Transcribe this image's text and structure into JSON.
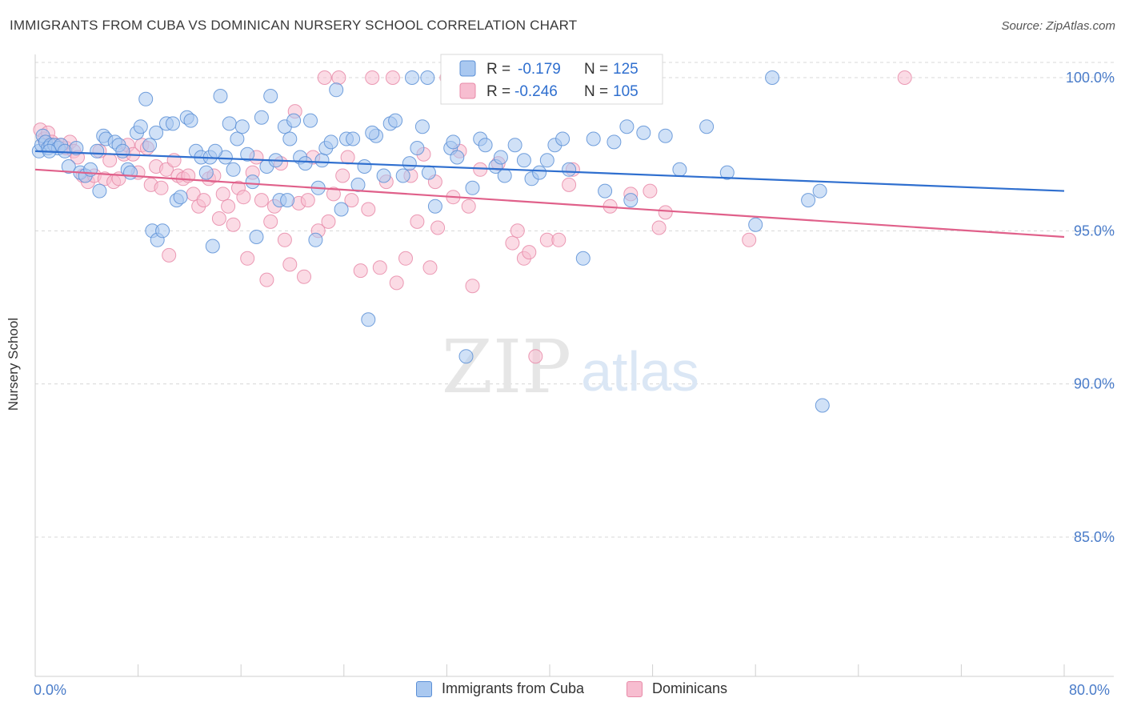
{
  "title": "IMMIGRANTS FROM CUBA VS DOMINICAN NURSERY SCHOOL CORRELATION CHART",
  "source": "Source: ZipAtlas.com",
  "watermark": {
    "zip": "ZIP",
    "atlas": "atlas"
  },
  "colors": {
    "blue_fill": "#a9c8f0",
    "blue_stroke": "#5b8fd6",
    "blue_line": "#2f6fcf",
    "pink_fill": "#f7bdd0",
    "pink_stroke": "#e88aa8",
    "pink_line": "#e0608a",
    "axis_text": "#4a7cc9",
    "grid": "#d8d8d8"
  },
  "legend": {
    "r_label": "R =",
    "n_label": "N =",
    "rows": [
      {
        "r": "-0.179",
        "n": "125"
      },
      {
        "r": "-0.246",
        "n": "105"
      }
    ]
  },
  "chart_data": {
    "type": "scatter",
    "ylabel": "Nursery School",
    "xlim": [
      0,
      80
    ],
    "ylim": [
      80.5,
      100.5
    ],
    "x_tick_labels": [
      "0.0%",
      "80.0%"
    ],
    "y_ticks": [
      {
        "value": 100,
        "label": "100.0%"
      },
      {
        "value": 95,
        "label": "95.0%"
      },
      {
        "value": 90,
        "label": "90.0%"
      },
      {
        "value": 85,
        "label": "85.0%"
      }
    ],
    "grid": true,
    "legend_position": "top-center",
    "series": [
      {
        "name": "Immigrants from Cuba",
        "color": "blue",
        "r": -0.179,
        "n": 125,
        "trend": {
          "x0": 0,
          "y0": 97.6,
          "x1": 80,
          "y1": 96.3
        },
        "points": [
          [
            0.3,
            97.6
          ],
          [
            0.5,
            97.8
          ],
          [
            0.6,
            98.1
          ],
          [
            0.8,
            97.9
          ],
          [
            1.0,
            97.7
          ],
          [
            1.2,
            97.8
          ],
          [
            1.5,
            97.8
          ],
          [
            1.8,
            97.7
          ],
          [
            2.0,
            97.8
          ],
          [
            2.3,
            97.6
          ],
          [
            2.6,
            97.1
          ],
          [
            3.2,
            97.7
          ],
          [
            3.5,
            96.9
          ],
          [
            3.9,
            96.8
          ],
          [
            4.3,
            97.0
          ],
          [
            4.8,
            97.6
          ],
          [
            5.3,
            98.1
          ],
          [
            5.5,
            98.0
          ],
          [
            6.2,
            97.9
          ],
          [
            6.5,
            97.8
          ],
          [
            6.8,
            97.6
          ],
          [
            7.2,
            97.0
          ],
          [
            7.4,
            96.9
          ],
          [
            7.9,
            98.2
          ],
          [
            8.2,
            98.4
          ],
          [
            8.6,
            99.3
          ],
          [
            8.9,
            97.8
          ],
          [
            9.1,
            95.0
          ],
          [
            9.5,
            94.7
          ],
          [
            9.9,
            95.0
          ],
          [
            10.2,
            98.5
          ],
          [
            10.7,
            98.5
          ],
          [
            11.0,
            96.0
          ],
          [
            11.3,
            96.1
          ],
          [
            11.8,
            98.7
          ],
          [
            12.1,
            98.6
          ],
          [
            12.5,
            97.6
          ],
          [
            12.9,
            97.4
          ],
          [
            13.3,
            96.9
          ],
          [
            13.6,
            97.4
          ],
          [
            13.8,
            94.5
          ],
          [
            14.4,
            99.4
          ],
          [
            14.8,
            97.4
          ],
          [
            15.1,
            98.5
          ],
          [
            15.4,
            97.0
          ],
          [
            15.7,
            98.0
          ],
          [
            16.1,
            98.4
          ],
          [
            16.5,
            97.5
          ],
          [
            16.9,
            96.6
          ],
          [
            17.2,
            94.8
          ],
          [
            17.6,
            98.7
          ],
          [
            18.0,
            97.1
          ],
          [
            18.3,
            99.4
          ],
          [
            18.7,
            97.3
          ],
          [
            19.0,
            96.0
          ],
          [
            19.4,
            98.4
          ],
          [
            19.8,
            98.0
          ],
          [
            20.1,
            98.6
          ],
          [
            20.6,
            97.4
          ],
          [
            21.0,
            97.2
          ],
          [
            21.4,
            98.6
          ],
          [
            21.8,
            94.7
          ],
          [
            22.3,
            97.3
          ],
          [
            22.6,
            97.7
          ],
          [
            23.0,
            97.9
          ],
          [
            23.4,
            99.6
          ],
          [
            23.8,
            95.7
          ],
          [
            24.2,
            98.0
          ],
          [
            24.7,
            98.0
          ],
          [
            25.1,
            96.5
          ],
          [
            25.6,
            97.1
          ],
          [
            25.9,
            92.1
          ],
          [
            26.5,
            98.1
          ],
          [
            27.1,
            96.8
          ],
          [
            27.6,
            98.5
          ],
          [
            28.0,
            98.6
          ],
          [
            28.6,
            96.8
          ],
          [
            29.1,
            97.2
          ],
          [
            29.3,
            100.0
          ],
          [
            29.7,
            97.7
          ],
          [
            30.1,
            98.4
          ],
          [
            30.6,
            96.9
          ],
          [
            31.1,
            95.8
          ],
          [
            32.3,
            97.7
          ],
          [
            32.8,
            97.4
          ],
          [
            33.5,
            90.9
          ],
          [
            34.0,
            96.4
          ],
          [
            34.6,
            98.0
          ],
          [
            35.0,
            97.8
          ],
          [
            35.8,
            97.1
          ],
          [
            36.2,
            97.4
          ],
          [
            36.5,
            96.8
          ],
          [
            37.3,
            97.8
          ],
          [
            38.0,
            97.3
          ],
          [
            38.6,
            96.7
          ],
          [
            39.2,
            96.9
          ],
          [
            39.8,
            97.3
          ],
          [
            40.4,
            97.8
          ],
          [
            41.0,
            98.0
          ],
          [
            41.5,
            97.0
          ],
          [
            42.6,
            94.1
          ],
          [
            43.4,
            98.0
          ],
          [
            44.3,
            96.3
          ],
          [
            45.0,
            97.9
          ],
          [
            46.3,
            96.0
          ],
          [
            47.3,
            98.2
          ],
          [
            49.0,
            98.1
          ],
          [
            50.1,
            97.0
          ],
          [
            52.2,
            98.4
          ],
          [
            53.8,
            96.9
          ],
          [
            56.0,
            95.2
          ],
          [
            60.1,
            96.0
          ],
          [
            61.0,
            96.3
          ],
          [
            61.2,
            89.3
          ],
          [
            57.3,
            100.0
          ],
          [
            19.6,
            96.0
          ],
          [
            30.5,
            100.0
          ],
          [
            14.0,
            97.6
          ],
          [
            22.0,
            96.4
          ],
          [
            5.0,
            96.3
          ],
          [
            9.4,
            98.2
          ],
          [
            26.2,
            98.2
          ],
          [
            46.0,
            98.4
          ],
          [
            1.1,
            97.6
          ],
          [
            32.5,
            97.9
          ]
        ]
      },
      {
        "name": "Dominicans",
        "color": "pink",
        "r": -0.246,
        "n": 105,
        "trend": {
          "x0": 0,
          "y0": 97.0,
          "x1": 80,
          "y1": 94.8
        },
        "points": [
          [
            0.4,
            98.3
          ],
          [
            0.7,
            98.0
          ],
          [
            1.0,
            98.2
          ],
          [
            1.3,
            97.9
          ],
          [
            1.6,
            97.8
          ],
          [
            2.0,
            97.8
          ],
          [
            2.4,
            97.7
          ],
          [
            2.7,
            97.9
          ],
          [
            3.0,
            97.6
          ],
          [
            3.3,
            97.4
          ],
          [
            3.7,
            96.8
          ],
          [
            4.1,
            96.6
          ],
          [
            4.6,
            96.8
          ],
          [
            5.0,
            97.6
          ],
          [
            5.4,
            96.7
          ],
          [
            5.8,
            97.3
          ],
          [
            6.1,
            96.6
          ],
          [
            6.5,
            96.7
          ],
          [
            6.9,
            97.5
          ],
          [
            7.2,
            97.8
          ],
          [
            7.6,
            97.5
          ],
          [
            8.0,
            96.9
          ],
          [
            8.3,
            97.8
          ],
          [
            8.7,
            97.7
          ],
          [
            9.0,
            96.5
          ],
          [
            9.4,
            97.1
          ],
          [
            9.8,
            96.4
          ],
          [
            10.2,
            97.0
          ],
          [
            10.4,
            94.2
          ],
          [
            10.8,
            97.3
          ],
          [
            11.1,
            96.8
          ],
          [
            11.5,
            96.7
          ],
          [
            11.9,
            96.8
          ],
          [
            12.3,
            96.2
          ],
          [
            12.7,
            95.8
          ],
          [
            13.1,
            96.0
          ],
          [
            13.5,
            96.7
          ],
          [
            13.9,
            96.8
          ],
          [
            14.3,
            95.4
          ],
          [
            14.6,
            96.2
          ],
          [
            15.0,
            95.8
          ],
          [
            15.4,
            95.2
          ],
          [
            15.8,
            96.4
          ],
          [
            16.2,
            96.1
          ],
          [
            16.5,
            94.1
          ],
          [
            16.9,
            96.9
          ],
          [
            17.2,
            97.4
          ],
          [
            17.6,
            96.0
          ],
          [
            18.0,
            93.4
          ],
          [
            18.3,
            95.3
          ],
          [
            18.6,
            95.8
          ],
          [
            19.1,
            97.2
          ],
          [
            19.4,
            94.7
          ],
          [
            19.8,
            93.9
          ],
          [
            20.2,
            98.9
          ],
          [
            20.5,
            95.9
          ],
          [
            20.9,
            93.5
          ],
          [
            21.2,
            96.0
          ],
          [
            21.6,
            97.4
          ],
          [
            22.0,
            95.0
          ],
          [
            22.5,
            100.0
          ],
          [
            22.8,
            95.3
          ],
          [
            23.2,
            96.2
          ],
          [
            23.6,
            100.0
          ],
          [
            23.9,
            96.8
          ],
          [
            24.3,
            97.4
          ],
          [
            24.6,
            96.0
          ],
          [
            25.3,
            93.7
          ],
          [
            25.9,
            95.7
          ],
          [
            26.2,
            100.0
          ],
          [
            26.8,
            93.8
          ],
          [
            27.3,
            96.6
          ],
          [
            27.8,
            100.0
          ],
          [
            28.1,
            93.3
          ],
          [
            28.8,
            94.1
          ],
          [
            29.2,
            96.8
          ],
          [
            29.7,
            95.3
          ],
          [
            30.2,
            97.5
          ],
          [
            30.7,
            93.8
          ],
          [
            31.1,
            96.6
          ],
          [
            31.3,
            95.1
          ],
          [
            32.0,
            100.0
          ],
          [
            32.5,
            96.1
          ],
          [
            33.0,
            97.6
          ],
          [
            33.7,
            95.8
          ],
          [
            34.0,
            93.2
          ],
          [
            34.6,
            97.0
          ],
          [
            36.0,
            97.2
          ],
          [
            37.1,
            94.6
          ],
          [
            37.5,
            95.0
          ],
          [
            38.0,
            94.1
          ],
          [
            38.4,
            94.3
          ],
          [
            38.9,
            90.9
          ],
          [
            39.8,
            94.7
          ],
          [
            40.7,
            94.7
          ],
          [
            41.5,
            96.5
          ],
          [
            41.8,
            97.0
          ],
          [
            44.7,
            95.8
          ],
          [
            46.3,
            96.2
          ],
          [
            47.8,
            96.3
          ],
          [
            48.5,
            95.1
          ],
          [
            49.0,
            95.6
          ],
          [
            55.5,
            94.7
          ],
          [
            67.6,
            100.0
          ],
          [
            35.6,
            100.0
          ]
        ]
      }
    ]
  }
}
